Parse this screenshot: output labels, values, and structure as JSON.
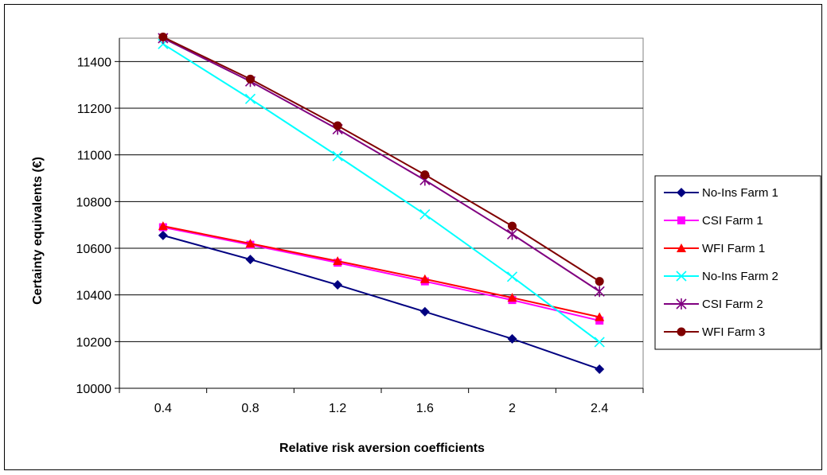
{
  "chart_data": {
    "type": "line",
    "title": "",
    "xlabel": "Relative risk aversion coefficients",
    "ylabel": "Certainty equivalents (€)",
    "categories": [
      "0.4",
      "0.8",
      "1.2",
      "1.6",
      "2",
      "2.4"
    ],
    "ylim": [
      10000,
      11500
    ],
    "yticks": [
      10000,
      10200,
      10400,
      10600,
      10800,
      11000,
      11200,
      11400
    ],
    "grid": "horizontal",
    "legend_position": "right",
    "series": [
      {
        "name": "No-Ins Farm 1",
        "color": "#000080",
        "marker": "diamond",
        "values": [
          10655,
          10552,
          10443,
          10328,
          10212,
          10082
        ]
      },
      {
        "name": "CSI Farm 1",
        "color": "#FF00FF",
        "marker": "square",
        "values": [
          10690,
          10615,
          10538,
          10458,
          10378,
          10290
        ]
      },
      {
        "name": "WFI Farm 1",
        "color": "#FF0000",
        "marker": "triangle",
        "values": [
          10695,
          10620,
          10545,
          10468,
          10388,
          10305
        ]
      },
      {
        "name": "No-Ins Farm 2",
        "color": "#00FFFF",
        "marker": "x",
        "values": [
          11475,
          11240,
          10995,
          10745,
          10478,
          10198
        ]
      },
      {
        "name": "CSI Farm 2",
        "color": "#800080",
        "marker": "star",
        "values": [
          11500,
          11315,
          11110,
          10892,
          10660,
          10415
        ]
      },
      {
        "name": "WFI Farm 3",
        "color": "#800000",
        "marker": "circle",
        "values": [
          11505,
          11325,
          11125,
          10915,
          10695,
          10458
        ]
      }
    ]
  }
}
